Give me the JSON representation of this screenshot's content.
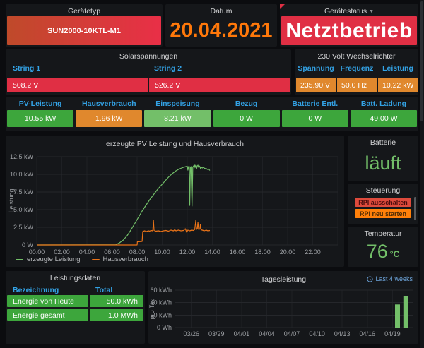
{
  "theme": {
    "red": "#e02f44",
    "orange_cell": "#e0882d",
    "orange_text": "#ff780a",
    "blue_header": "#33a2e5",
    "green": "#3da63c",
    "light_green": "#73bf69"
  },
  "panels": {
    "geraetetyp": {
      "title": "Gerätetyp",
      "value": "SUN2000-10KTL-M1"
    },
    "datum": {
      "title": "Datum",
      "value": "20.04.2021"
    },
    "geraetestatus": {
      "title": "Gerätestatus",
      "value": "Netztbetrieb"
    },
    "solarspannungen": {
      "title": "Solarspannungen",
      "columns": [
        {
          "label": "String 1",
          "value": "508.2 V"
        },
        {
          "label": "String 2",
          "value": "526.2 V"
        }
      ]
    },
    "wechselrichter": {
      "title": "230 Volt Wechselrichter",
      "columns": [
        {
          "label": "Spannung",
          "value": "235.90 V"
        },
        {
          "label": "Frequenz",
          "value": "50.0 Hz"
        },
        {
          "label": "Leistung",
          "value": "10.22 kW"
        }
      ]
    },
    "stats": {
      "items": [
        {
          "label": "PV-Leistung",
          "value": "10.55 kW",
          "color": "#3da63c"
        },
        {
          "label": "Hausverbrauch",
          "value": "1.96 kW",
          "color": "#e0882d"
        },
        {
          "label": "Einspeisung",
          "value": "8.21 kW",
          "color": "#73bf69"
        },
        {
          "label": "Bezug",
          "value": "0 W",
          "color": "#3da63c"
        },
        {
          "label": "Batterie Entl.",
          "value": "0 W",
          "color": "#3da63c"
        },
        {
          "label": "Batt. Ladung",
          "value": "49.00 W",
          "color": "#3da63c"
        }
      ]
    },
    "batterie": {
      "title": "Batterie",
      "value": "läuft"
    },
    "steuerung": {
      "title": "Steuerung",
      "buttons": [
        {
          "label": "RPI ausschalten",
          "color": "#dd4a3c"
        },
        {
          "label": "RPI neu starten",
          "color": "#ff800a"
        }
      ]
    },
    "temperatur": {
      "title": "Temperatur",
      "value": "76",
      "unit": "°C"
    },
    "leistungsdaten": {
      "title": "Leistungsdaten",
      "headers": [
        "Bezeichnung",
        "Total"
      ],
      "rows": [
        {
          "name": "Energie von Heute",
          "total": "50.0 kWh"
        },
        {
          "name": "Energie gesamt",
          "total": "1.0 MWh"
        }
      ]
    }
  },
  "chart_data": [
    {
      "type": "line",
      "title": "erzeugte PV Leistung und Hausverbrauch",
      "ylabel": "Leistung",
      "xlabel": "time of day",
      "xlim_hours": [
        0,
        24
      ],
      "ylim": [
        0,
        12.5
      ],
      "x_ticks": [
        "00:00",
        "02:00",
        "04:00",
        "06:00",
        "08:00",
        "10:00",
        "12:00",
        "14:00",
        "16:00",
        "18:00",
        "20:00",
        "22:00"
      ],
      "y_ticks": [
        "0 W",
        "2.5 kW",
        "5.0 kW",
        "7.5 kW",
        "10.0 kW",
        "12.5 kW"
      ],
      "grid": true,
      "legend_position": "bottom-left",
      "series": [
        {
          "name": "erzeugte Leistung",
          "color": "#73bf69",
          "unit": "kW",
          "points": [
            [
              0,
              0
            ],
            [
              6.3,
              0.02
            ],
            [
              6.6,
              0.3
            ],
            [
              6.9,
              0.7
            ],
            [
              7.2,
              1.3
            ],
            [
              7.5,
              2.1
            ],
            [
              7.8,
              3.0
            ],
            [
              8.1,
              3.9
            ],
            [
              8.4,
              4.8
            ],
            [
              8.7,
              5.6
            ],
            [
              9.0,
              6.4
            ],
            [
              9.3,
              7.1
            ],
            [
              9.6,
              7.8
            ],
            [
              9.9,
              8.4
            ],
            [
              10.2,
              9.0
            ],
            [
              10.5,
              9.6
            ],
            [
              10.8,
              10.1
            ],
            [
              11.1,
              10.5
            ],
            [
              11.4,
              10.8
            ],
            [
              11.7,
              11.0
            ],
            [
              11.9,
              11.1
            ],
            [
              12.0,
              11.15
            ],
            [
              12.05,
              10.6
            ],
            [
              12.1,
              11.1
            ],
            [
              12.15,
              11.15
            ],
            [
              12.2,
              5.6
            ],
            [
              12.25,
              11.0
            ],
            [
              12.3,
              11.1
            ],
            [
              12.38,
              5.5
            ],
            [
              12.44,
              11.0
            ],
            [
              12.5,
              11.2
            ],
            [
              12.55,
              10.9
            ],
            [
              12.6,
              11.3
            ],
            [
              12.65,
              11.0
            ],
            [
              12.7,
              11.35
            ],
            [
              12.75,
              10.85
            ],
            [
              12.8,
              11.2
            ],
            [
              12.85,
              11.3
            ],
            [
              12.9,
              11.0
            ],
            [
              12.95,
              11.2
            ],
            [
              13.0,
              11.1
            ],
            [
              13.05,
              10.85
            ],
            [
              13.1,
              11.05
            ],
            [
              13.2,
              10.9
            ],
            [
              13.3,
              11.0
            ],
            [
              13.4,
              10.8
            ],
            [
              13.5,
              10.85
            ],
            [
              13.6,
              10.7
            ],
            [
              13.7,
              10.75
            ],
            [
              13.8,
              10.55
            ]
          ]
        },
        {
          "name": "Hausverbrauch",
          "color": "#ea7318",
          "unit": "kW",
          "points": [
            [
              0,
              0
            ],
            [
              8.0,
              0
            ],
            [
              8.02,
              0.45
            ],
            [
              8.4,
              0.5
            ],
            [
              8.45,
              1.9
            ],
            [
              8.6,
              2.0
            ],
            [
              8.75,
              1.9
            ],
            [
              8.9,
              2.0
            ],
            [
              9.0,
              1.95
            ],
            [
              9.1,
              2.05
            ],
            [
              9.25,
              2.0
            ],
            [
              9.3,
              3.5
            ],
            [
              9.35,
              2.05
            ],
            [
              9.5,
              1.95
            ],
            [
              9.7,
              2.0
            ],
            [
              9.9,
              1.9
            ],
            [
              10.1,
              2.0
            ],
            [
              10.3,
              2.05
            ],
            [
              10.5,
              1.95
            ],
            [
              10.7,
              2.1
            ],
            [
              10.9,
              2.0
            ],
            [
              11.0,
              2.15
            ],
            [
              11.1,
              2.0
            ],
            [
              11.3,
              2.1
            ],
            [
              11.5,
              2.0
            ],
            [
              11.7,
              2.05
            ],
            [
              11.85,
              2.3
            ],
            [
              11.95,
              1.8
            ],
            [
              12.05,
              2.1
            ],
            [
              12.2,
              2.0
            ],
            [
              12.35,
              2.1
            ],
            [
              12.5,
              2.05
            ],
            [
              12.6,
              2.2
            ],
            [
              12.68,
              3.5
            ],
            [
              12.73,
              2.2
            ],
            [
              12.8,
              2.3
            ],
            [
              12.85,
              3.2
            ],
            [
              12.9,
              2.2
            ],
            [
              13.0,
              2.25
            ],
            [
              13.05,
              2.9
            ],
            [
              13.1,
              2.15
            ],
            [
              13.2,
              2.1
            ],
            [
              13.35,
              2.0
            ],
            [
              13.5,
              2.1
            ],
            [
              13.65,
              2.0
            ],
            [
              13.8,
              2.05
            ]
          ]
        }
      ]
    },
    {
      "type": "bar",
      "title": "Tagesleistung",
      "ylabel": "pro Tag",
      "time_range": "Last 4 weeks",
      "ylim": [
        0,
        60
      ],
      "y_ticks": [
        "0 Wh",
        "20 kWh",
        "40 kWh",
        "60 kWh"
      ],
      "x_ticks": [
        "03/26",
        "03/29",
        "04/01",
        "04/04",
        "04/07",
        "04/10",
        "04/13",
        "04/16",
        "04/19"
      ],
      "x_range": [
        "03/24",
        "04/21"
      ],
      "grid": true,
      "bar_color": "#73bf69",
      "bars": [
        {
          "date": "04/19",
          "value": 37
        },
        {
          "date": "04/20",
          "value": 50
        }
      ]
    }
  ]
}
